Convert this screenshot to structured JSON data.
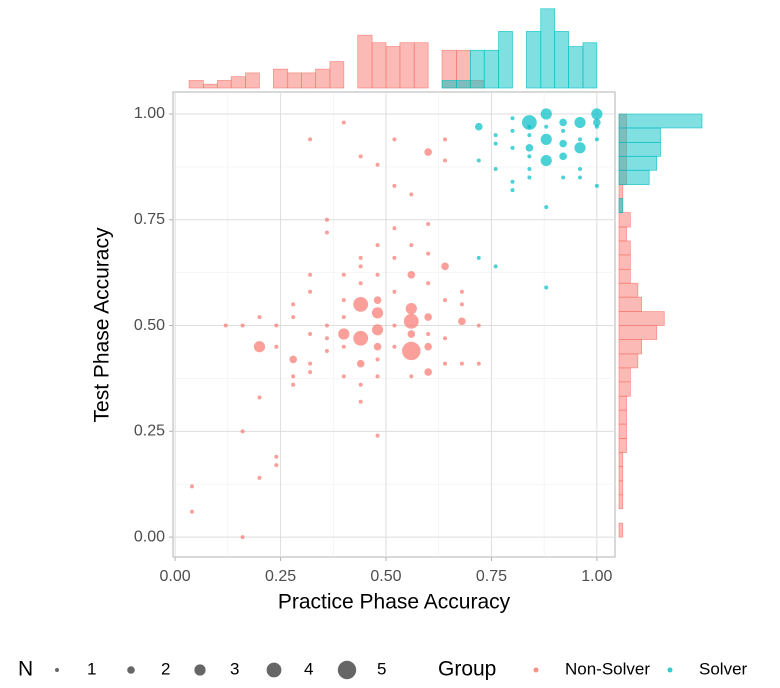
{
  "chart_data": {
    "type": "scatter",
    "x_label": "Practice Phase Accuracy",
    "y_label": "Test Phase Accuracy",
    "xlim": [
      -0.005,
      1.043
    ],
    "ylim": [
      -0.047,
      1.052
    ],
    "xticks": [
      {
        "value": 0,
        "label": "0.00"
      },
      {
        "value": 0.25,
        "label": "0.25"
      },
      {
        "value": 0.5,
        "label": "0.50"
      },
      {
        "value": 0.75,
        "label": "0.75"
      },
      {
        "value": 1,
        "label": "1.00"
      }
    ],
    "yticks": [
      {
        "value": 0,
        "label": "0.00"
      },
      {
        "value": 0.25,
        "label": "0.25"
      },
      {
        "value": 0.5,
        "label": "0.50"
      },
      {
        "value": 0.75,
        "label": "0.75"
      },
      {
        "value": 1,
        "label": "1.00"
      }
    ],
    "xminor_ticks": [
      0.125,
      0.375,
      0.625,
      0.875
    ],
    "yminor_ticks": [
      0.125,
      0.375,
      0.625,
      0.875
    ],
    "grid": true,
    "size_legend": {
      "title": "N",
      "values": [
        1,
        2,
        3,
        4,
        5
      ]
    },
    "color_legend_title": "Group",
    "series": [
      {
        "name": "Non-Solver",
        "color": "#F8766D",
        "x": [
          0.04,
          0.04,
          0.16,
          0.16,
          0.2,
          0.24,
          0.24,
          0.2,
          0.12,
          0.16,
          0.2,
          0.2,
          0.24,
          0.24,
          0.28,
          0.28,
          0.28,
          0.28,
          0.28,
          0.32,
          0.32,
          0.32,
          0.32,
          0.32,
          0.32,
          0.36,
          0.36,
          0.36,
          0.36,
          0.36,
          0.4,
          0.4,
          0.4,
          0.4,
          0.4,
          0.4,
          0.44,
          0.44,
          0.44,
          0.44,
          0.44,
          0.44,
          0.44,
          0.44,
          0.48,
          0.48,
          0.48,
          0.48,
          0.48,
          0.48,
          0.48,
          0.48,
          0.48,
          0.48,
          0.52,
          0.52,
          0.52,
          0.52,
          0.52,
          0.52,
          0.56,
          0.56,
          0.56,
          0.56,
          0.56,
          0.56,
          0.56,
          0.56,
          0.6,
          0.6,
          0.6,
          0.6,
          0.6,
          0.6,
          0.6,
          0.6,
          0.64,
          0.64,
          0.64,
          0.64,
          0.64,
          0.64,
          0.68,
          0.68,
          0.68,
          0.68,
          0.72,
          0.72,
          0.4,
          0.44,
          0.52
        ],
        "y": [
          0.12,
          0.06,
          0,
          0.25,
          0.14,
          0.19,
          0.17,
          0.33,
          0.5,
          0.5,
          0.45,
          0.52,
          0.5,
          0.45,
          0.42,
          0.38,
          0.36,
          0.52,
          0.55,
          0.58,
          0.62,
          0.94,
          0.48,
          0.41,
          0.39,
          0.5,
          0.75,
          0.72,
          0.44,
          0.47,
          0.48,
          0.52,
          0.56,
          0.62,
          0.38,
          0.45,
          0.55,
          0.47,
          0.41,
          0.64,
          0.6,
          0.66,
          0.36,
          0.32,
          0.56,
          0.53,
          0.49,
          0.45,
          0.42,
          0.88,
          0.69,
          0.24,
          0.38,
          0.62,
          0.5,
          0.58,
          0.66,
          0.83,
          0.73,
          0.45,
          0.54,
          0.51,
          0.48,
          0.44,
          0.62,
          0.69,
          0.81,
          0.38,
          0.52,
          0.48,
          0.45,
          0.39,
          0.91,
          0.6,
          0.67,
          0.74,
          0.64,
          0.94,
          0.56,
          0.47,
          0.89,
          0.41,
          0.51,
          0.55,
          0.41,
          0.58,
          0.41,
          0.5,
          0.98,
          0.9,
          0.94
        ],
        "n": [
          1,
          1,
          1,
          1,
          1,
          1,
          1,
          1,
          1,
          1,
          3,
          1,
          1,
          1,
          2,
          1,
          1,
          1,
          1,
          1,
          1,
          1,
          1,
          1,
          1,
          1,
          1,
          1,
          1,
          1,
          3,
          1,
          1,
          1,
          1,
          1,
          4,
          4,
          2,
          1,
          1,
          1,
          1,
          1,
          2,
          3,
          3,
          2,
          1,
          1,
          1,
          1,
          1,
          1,
          1,
          1,
          1,
          1,
          1,
          1,
          3,
          4,
          2,
          5,
          2,
          1,
          1,
          1,
          2,
          1,
          2,
          2,
          2,
          1,
          1,
          1,
          2,
          1,
          1,
          1,
          1,
          1,
          2,
          1,
          1,
          1,
          1,
          1,
          1,
          1,
          1
        ]
      },
      {
        "name": "Solver",
        "color": "#00BFC4",
        "x": [
          0.72,
          0.72,
          0.72,
          0.76,
          0.76,
          0.76,
          0.76,
          0.8,
          0.8,
          0.8,
          0.8,
          0.8,
          0.84,
          0.84,
          0.84,
          0.84,
          0.84,
          0.84,
          0.84,
          0.88,
          0.88,
          0.88,
          0.88,
          0.88,
          0.88,
          0.92,
          0.92,
          0.92,
          0.92,
          0.92,
          0.96,
          0.96,
          0.96,
          0.96,
          0.96,
          1,
          1,
          1,
          1,
          1
        ],
        "y": [
          0.97,
          0.89,
          0.66,
          0.64,
          0.95,
          0.93,
          0.87,
          0.99,
          0.96,
          0.92,
          0.84,
          0.82,
          0.98,
          0.92,
          0.9,
          0.97,
          0.95,
          0.87,
          0.85,
          1,
          0.94,
          0.89,
          0.78,
          0.59,
          0.97,
          0.98,
          0.93,
          0.9,
          0.85,
          0.96,
          0.98,
          0.92,
          0.94,
          0.87,
          0.85,
          1,
          0.98,
          0.97,
          0.94,
          0.83
        ],
        "n": [
          2,
          1,
          1,
          1,
          1,
          1,
          1,
          1,
          1,
          1,
          1,
          1,
          4,
          2,
          1,
          1,
          1,
          1,
          1,
          3,
          3,
          3,
          1,
          1,
          1,
          2,
          2,
          2,
          1,
          1,
          3,
          3,
          1,
          1,
          1,
          3,
          2,
          1,
          1,
          1
        ]
      }
    ],
    "top_histogram": {
      "bins": [
        0.033,
        0.067,
        0.1,
        0.133,
        0.167,
        0.2,
        0.233,
        0.267,
        0.3,
        0.333,
        0.367,
        0.4,
        0.433,
        0.467,
        0.5,
        0.533,
        0.567,
        0.6,
        0.633,
        0.667,
        0.7,
        0.733,
        0.767,
        0.8,
        0.833,
        0.867,
        0.9,
        0.933,
        0.967,
        1
      ],
      "ylim": [
        0,
        22
      ],
      "counts": [
        [
          2,
          1,
          2,
          3,
          4,
          0,
          5,
          4,
          4,
          5,
          7,
          0,
          14,
          12,
          11,
          12,
          12,
          0,
          10,
          10,
          2,
          0,
          0,
          0,
          0,
          0,
          0,
          0,
          0
        ],
        [
          0,
          0,
          0,
          0,
          0,
          0,
          0,
          0,
          0,
          0,
          0,
          0,
          0,
          0,
          0,
          0,
          0,
          0,
          2,
          2,
          10,
          10,
          15,
          0,
          15,
          21,
          15,
          11,
          12
        ]
      ]
    },
    "right_histogram": {
      "bins": [
        0,
        0.033,
        0.067,
        0.1,
        0.133,
        0.167,
        0.2,
        0.233,
        0.267,
        0.3,
        0.333,
        0.367,
        0.4,
        0.433,
        0.467,
        0.5,
        0.533,
        0.567,
        0.6,
        0.633,
        0.667,
        0.7,
        0.733,
        0.767,
        0.8,
        0.833,
        0.867,
        0.9,
        0.933,
        0.967,
        1
      ],
      "xlim": [
        0,
        22
      ],
      "counts": [
        [
          1,
          0,
          1,
          1,
          1,
          1,
          2,
          2,
          2,
          2,
          3,
          3,
          5,
          6,
          10,
          12,
          6,
          5,
          3,
          3,
          3,
          2,
          3,
          1,
          1,
          2,
          2,
          2,
          2,
          2
        ],
        [
          0,
          0,
          0,
          0,
          0,
          0,
          0,
          0,
          0,
          0,
          0,
          0,
          0,
          0,
          0,
          0,
          0,
          0,
          0,
          0,
          0,
          0,
          0,
          1,
          0,
          8,
          10,
          11,
          11,
          22
        ]
      ]
    }
  }
}
